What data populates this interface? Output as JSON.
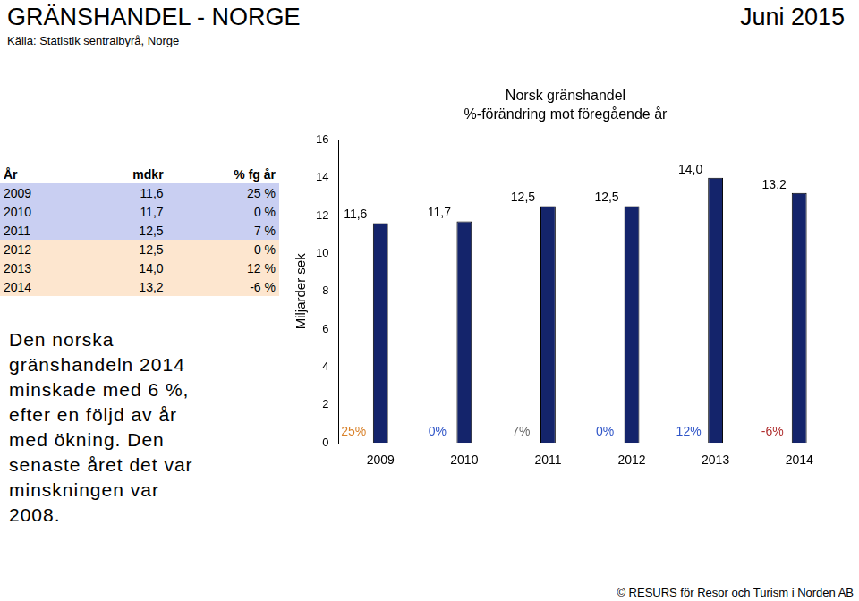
{
  "header": {
    "title": "GRÄNSHANDEL - NORGE",
    "date": "Juni 2015",
    "source": "Källa: Statistik sentralbyrå, Norge"
  },
  "table": {
    "columns": [
      "År",
      "mdkr",
      "% fg år"
    ],
    "rows": [
      [
        "2009",
        "11,6",
        "25 %"
      ],
      [
        "2010",
        "11,7",
        "0 %"
      ],
      [
        "2011",
        "12,5",
        "7 %"
      ],
      [
        "2012",
        "12,5",
        "0 %"
      ],
      [
        "2013",
        "14,0",
        "12 %"
      ],
      [
        "2014",
        "13,2",
        "-6 %"
      ]
    ]
  },
  "text": "Den norska gränshandeln 2014 minskade med 6 %, efter en följd av år med ökning. Den senaste året det var minskningen var 2008.",
  "footer": "© RESURS för Resor och Turism i Norden AB",
  "chart_data": {
    "type": "bar",
    "title": "Norsk gränshandel",
    "subtitle": "%-förändring mot föregående år",
    "y_label": "Miljarder sek",
    "categories": [
      "2009",
      "2010",
      "2011",
      "2012",
      "2013",
      "2014"
    ],
    "values": [
      11.6,
      11.7,
      12.5,
      12.5,
      14.0,
      13.2
    ],
    "value_labels": [
      "11,6",
      "11,7",
      "12,5",
      "12,5",
      "14,0",
      "13,2"
    ],
    "annotations": [
      "25%",
      "0%",
      "7%",
      "0%",
      "12%",
      "-6%"
    ],
    "color": "#14246b",
    "ylim": [
      0,
      16
    ],
    "yticks": [
      0,
      2,
      4,
      6,
      8,
      10,
      12,
      14,
      16
    ],
    "grid": false,
    "data_labels": true
  }
}
